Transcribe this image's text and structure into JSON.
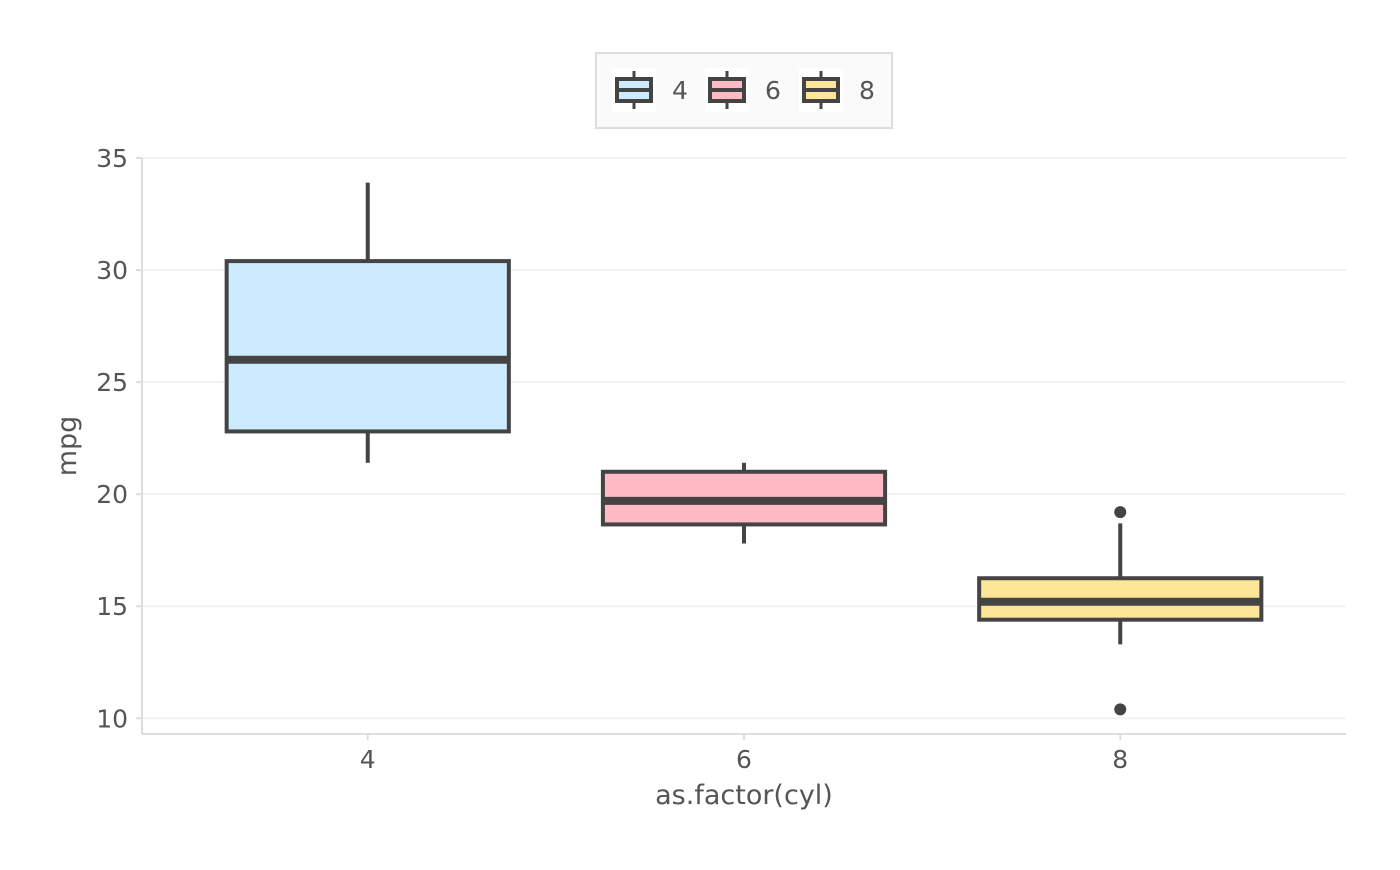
{
  "chart_data": {
    "type": "box",
    "title": "",
    "xlabel": "as.factor(cyl)",
    "ylabel": "mpg",
    "ylim": [
      9.3,
      35.0
    ],
    "yticks": [
      10,
      15,
      20,
      25,
      30,
      35
    ],
    "grid": "horizontal",
    "legend": {
      "position": "top",
      "entries": [
        "4",
        "6",
        "8"
      ]
    },
    "categories": [
      "4",
      "6",
      "8"
    ],
    "boxes": [
      {
        "category": "4",
        "color": "#CCEBFF",
        "min": 21.4,
        "q1": 22.8,
        "median": 26.0,
        "q3": 30.4,
        "max": 33.9,
        "outliers": []
      },
      {
        "category": "6",
        "color": "#FFBAC6",
        "min": 17.8,
        "q1": 18.65,
        "median": 19.7,
        "q3": 21.0,
        "max": 21.4,
        "outliers": []
      },
      {
        "category": "8",
        "color": "#FDE697",
        "min": 13.3,
        "q1": 14.4,
        "median": 15.2,
        "q3": 16.25,
        "max": 18.7,
        "outliers": [
          10.4,
          19.2
        ]
      }
    ]
  }
}
